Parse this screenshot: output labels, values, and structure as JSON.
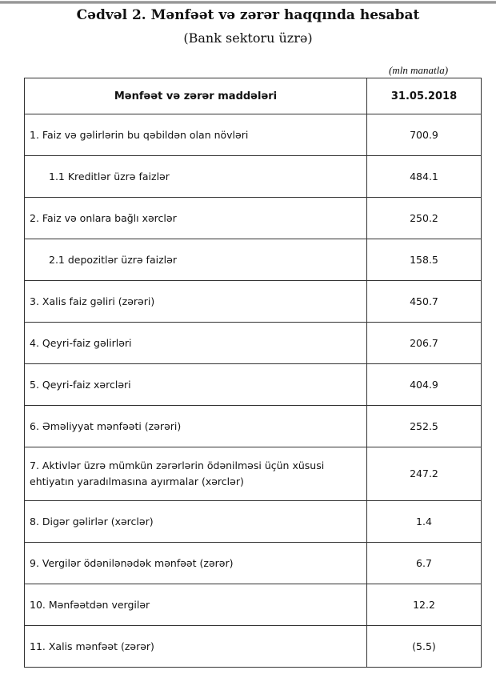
{
  "title": "Cədvəl 2. Mənfəət və zərər haqqında hesabat",
  "subtitle": "(Bank sektoru üzrə)",
  "unit": "(mln manatla)",
  "table": {
    "headers": [
      "Mənfəət və zərər maddələri",
      "31.05.2018"
    ],
    "rows": [
      {
        "label": "1. Faiz və gəlirlərin bu qəbildən olan növləri",
        "value": "700.9"
      },
      {
        "label": "1.1 Kreditlər üzrə faizlər",
        "value": "484.1"
      },
      {
        "label": "2. Faiz və onlara bağlı xərclər",
        "value": "250.2"
      },
      {
        "label": "2.1 depozitlər üzrə faizlər",
        "value": "158.5"
      },
      {
        "label": "3. Xalis faiz gəliri (zərəri)",
        "value": "450.7"
      },
      {
        "label": "4. Qeyri-faiz gəlirləri",
        "value": "206.7"
      },
      {
        "label": "5. Qeyri-faiz xərcləri",
        "value": "404.9"
      },
      {
        "label": "6. Əməliyyat mənfəəti (zərəri)",
        "value": "252.5"
      },
      {
        "label": "7. Aktivlər üzrə mümkün zərərlərin ödənilməsi üçün xüsusi ehtiyatın yaradılmasına ayırmalar (xərclər)",
        "value": "247.2"
      },
      {
        "label": "8. Digər gəlirlər (xərclər)",
        "value": "1.4"
      },
      {
        "label": "9. Vergilər ödənilənədək mənfəət (zərər)",
        "value": "6.7"
      },
      {
        "label": "10. Mənfəətdən vergilər",
        "value": "12.2"
      },
      {
        "label": "11. Xalis mənfəət (zərər)",
        "value": "(5.5)"
      }
    ]
  }
}
